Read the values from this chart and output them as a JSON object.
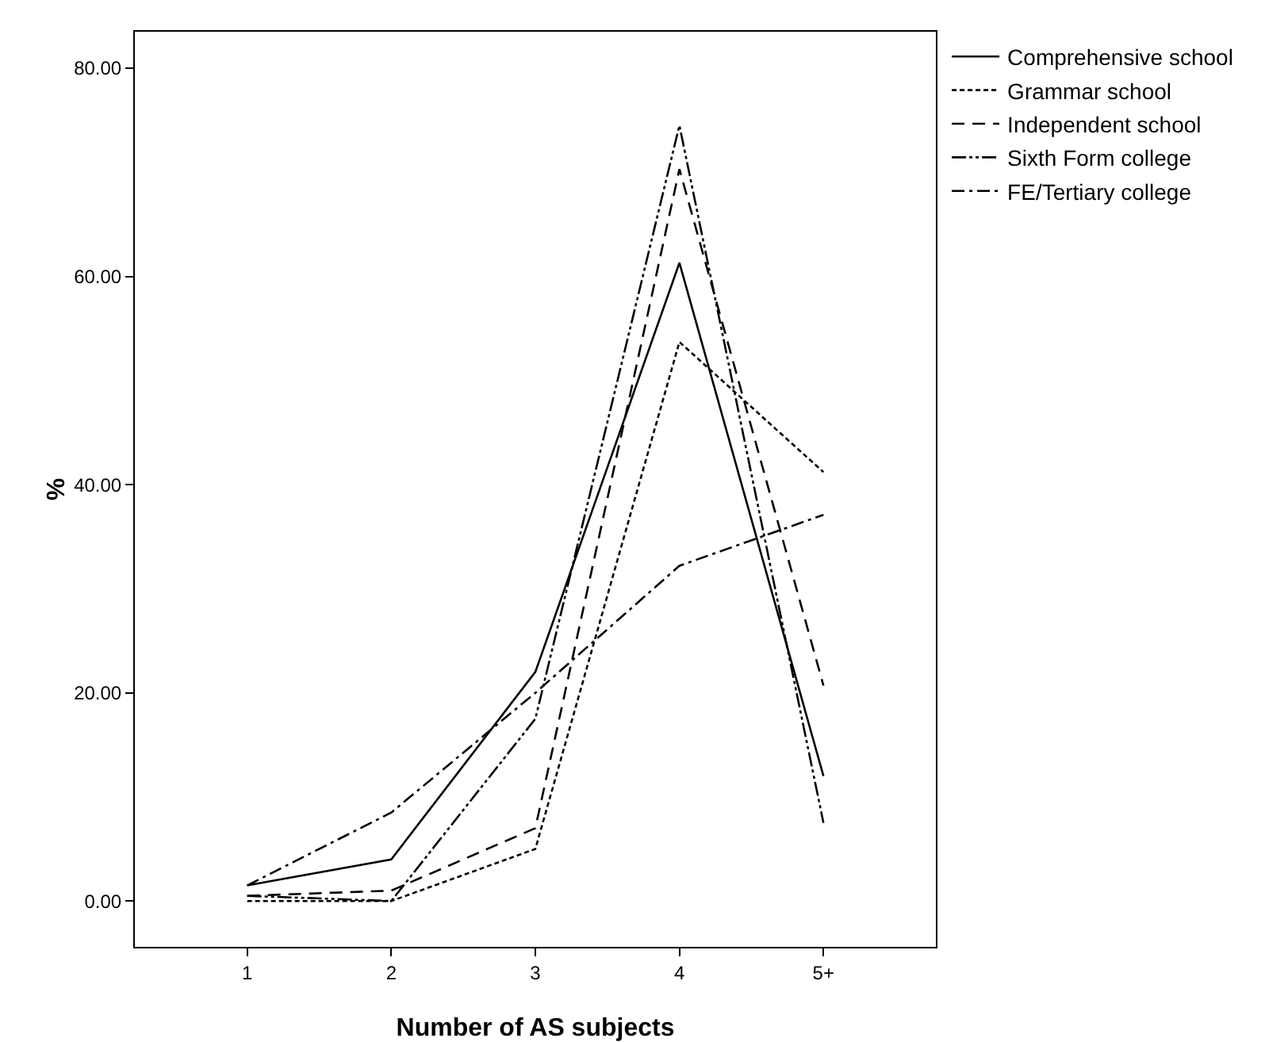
{
  "chart_data": {
    "type": "line",
    "xlabel": "Number of AS subjects",
    "ylabel": "%",
    "categories": [
      "1",
      "2",
      "3",
      "4",
      "5+"
    ],
    "series": [
      {
        "name": "Comprehensive school",
        "color": "#000000",
        "line_style": "solid",
        "values": [
          1.5,
          4,
          22,
          61.3,
          12
        ]
      },
      {
        "name": "Grammar school",
        "color": "#000000",
        "line_style": "dotted",
        "values": [
          0,
          0,
          5,
          53.7,
          41.2
        ]
      },
      {
        "name": "Independent school",
        "color": "#000000",
        "line_style": "dashed",
        "values": [
          0.5,
          1,
          7,
          70.3,
          20.7
        ]
      },
      {
        "name": "Sixth Form college",
        "color": "#000000",
        "line_style": "dashdotdot",
        "values": [
          0.5,
          0,
          17.5,
          74.5,
          7.5
        ]
      },
      {
        "name": "FE/Tertiary college",
        "color": "#000000",
        "line_style": "dashdot",
        "values": [
          1.5,
          8.5,
          20,
          32.2,
          37.1
        ]
      }
    ],
    "ylim": [
      -4.4,
      83.5
    ],
    "yticks": [
      {
        "value": 0,
        "label": "0.00"
      },
      {
        "value": 20,
        "label": "20.00"
      },
      {
        "value": 40,
        "label": "40.00"
      },
      {
        "value": 60,
        "label": "60.00"
      },
      {
        "value": 80,
        "label": "80.00"
      }
    ],
    "grid": false,
    "legend": "top right",
    "marker": "none"
  }
}
